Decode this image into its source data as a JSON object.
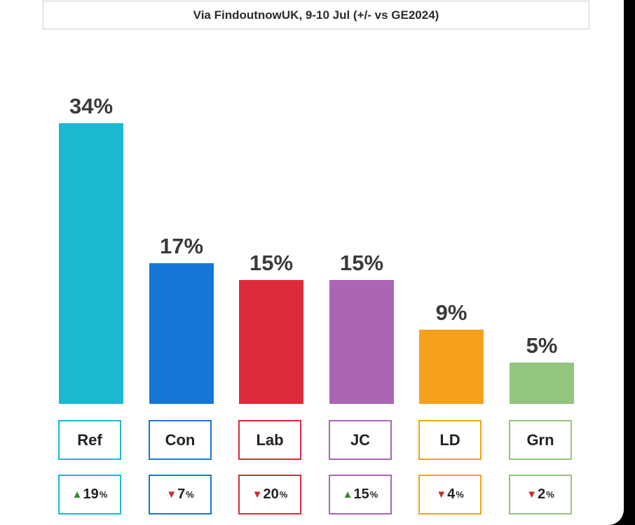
{
  "title": "Via FindoutnowUK, 9-10 Jul (+/- vs GE2024)",
  "chart_data": {
    "type": "bar",
    "title": "Via FindoutnowUK, 9-10 Jul (+/- vs GE2024)",
    "categories": [
      "Ref",
      "Con",
      "Lab",
      "JC",
      "LD",
      "Grn"
    ],
    "values": [
      34,
      17,
      15,
      15,
      9,
      5
    ],
    "value_labels": [
      "34%",
      "17%",
      "15%",
      "15%",
      "9%",
      "5%"
    ],
    "changes": [
      19,
      -7,
      -20,
      15,
      -4,
      -2
    ],
    "change_labels": [
      "19",
      "7",
      "20",
      "15",
      "4",
      "2"
    ],
    "change_unit": "%",
    "colors": [
      "#1bb8d2",
      "#1677d9",
      "#de2b3c",
      "#ab65b3",
      "#f5a11c",
      "#92c57e"
    ],
    "up_color": "#2e8b2e",
    "down_color": "#d32a2a"
  }
}
